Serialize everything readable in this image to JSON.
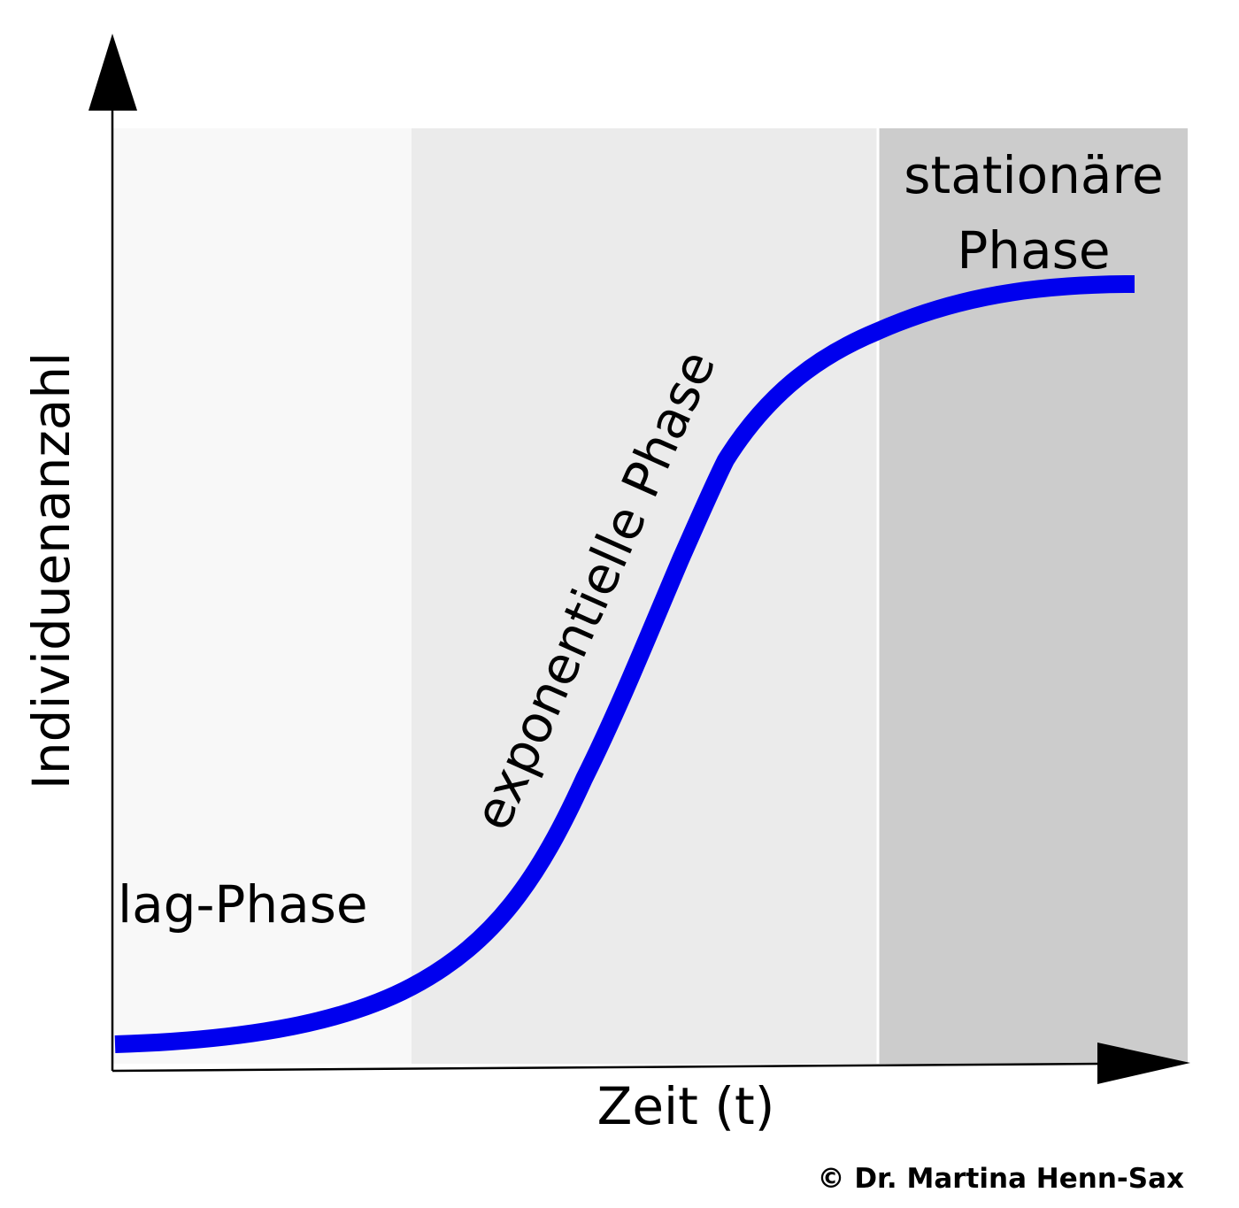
{
  "axes": {
    "y_label": "Individuenanzahl",
    "x_label": "Zeit (t)"
  },
  "phases": [
    {
      "lines": [
        "lag-Phase"
      ]
    },
    {
      "lines": [
        "exponentielle Phase"
      ]
    },
    {
      "lines": [
        "stationäre",
        "Phase"
      ]
    }
  ],
  "copyright": "© Dr. Martina Henn-Sax"
}
